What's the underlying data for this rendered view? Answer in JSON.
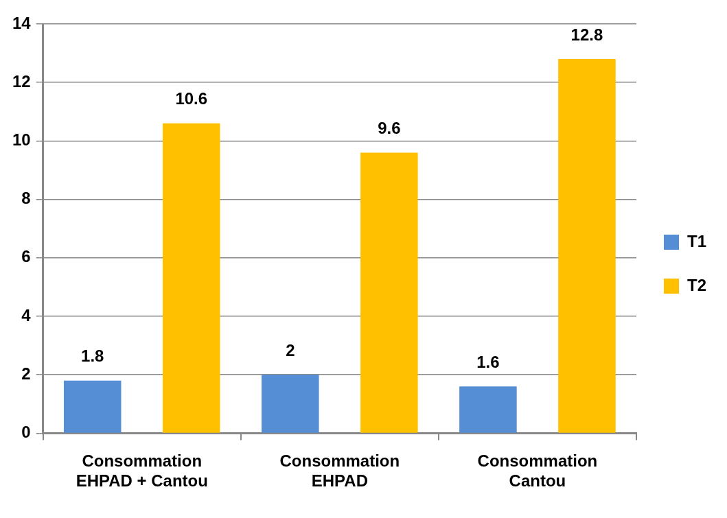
{
  "chart_data": {
    "type": "bar",
    "categories": [
      "Consommation\nEHPAD + Cantou",
      "Consommation\nEHPAD",
      "Consommation\nCantou"
    ],
    "series": [
      {
        "name": "T1",
        "color": "#558ed5",
        "values": [
          1.8,
          2,
          1.6
        ]
      },
      {
        "name": "T2",
        "color": "#ffc000",
        "values": [
          10.6,
          9.6,
          12.8
        ]
      }
    ],
    "ylim": [
      0,
      14
    ],
    "yticks": [
      0,
      2,
      4,
      6,
      8,
      10,
      12,
      14
    ],
    "grid": "y",
    "legend": "right",
    "data_labels": true
  }
}
